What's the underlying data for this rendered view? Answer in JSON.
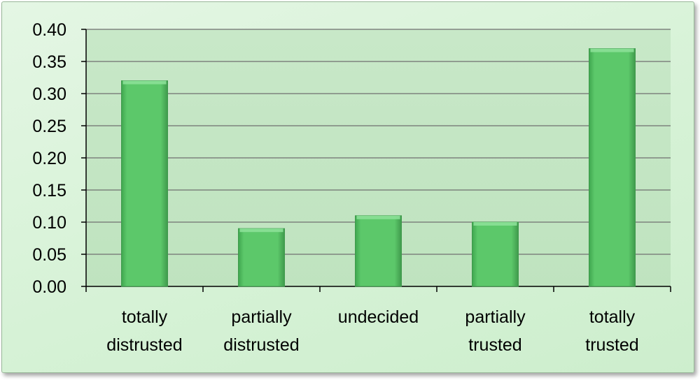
{
  "chart_data": {
    "type": "bar",
    "categories": [
      [
        "totally",
        "distrusted"
      ],
      [
        "partially",
        "distrusted"
      ],
      [
        "undecided"
      ],
      [
        "partially",
        "trusted"
      ],
      [
        "totally",
        "trusted"
      ]
    ],
    "values": [
      0.32,
      0.09,
      0.11,
      0.1,
      0.37
    ],
    "title": "",
    "xlabel": "",
    "ylabel": "",
    "ylim": [
      0,
      0.4
    ],
    "yticks": [
      "0.00",
      "0.05",
      "0.10",
      "0.15",
      "0.20",
      "0.25",
      "0.30",
      "0.35",
      "0.40"
    ],
    "grid": true,
    "legend": "none",
    "colors": {
      "bar": "#5cc86a",
      "bar_top": "#8be097",
      "bar_edge": "#3f9a4c",
      "plot_bg": "#c6e8c6",
      "grid": "#6f6f6f",
      "axis": "#000000"
    }
  }
}
